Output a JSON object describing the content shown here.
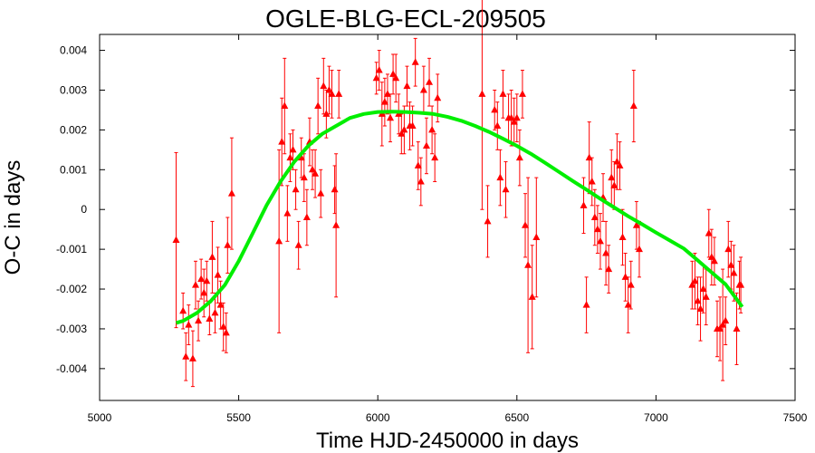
{
  "chart_data": {
    "type": "scatter",
    "title": "OGLE-BLG-ECL-209505",
    "xlabel": "Time HJD-2450000 in days",
    "ylabel": "O-C in days",
    "xlim": [
      5000,
      7500
    ],
    "ylim": [
      -0.0048,
      0.0044
    ],
    "x_ticks": [
      5000,
      5500,
      6000,
      6500,
      7000,
      7500
    ],
    "y_ticks": [
      0.004,
      0.003,
      0.002,
      0.001,
      0,
      -0.001,
      -0.002,
      -0.003,
      -0.004
    ],
    "x_tick_labels": [
      "5000",
      "5500",
      "6000",
      "6500",
      "7000",
      "7500"
    ],
    "y_tick_labels": [
      "0.004",
      "0.003",
      "0.002",
      "0.001",
      "0",
      "-0.001",
      "-0.002",
      "-0.003",
      "-0.004"
    ],
    "grid": false,
    "series": [
      {
        "kind": "points-with-errorbars",
        "color": "#ff0000",
        "marker": "triangle",
        "points": [
          {
            "x": 5275,
            "y": -0.00077,
            "err": 0.0022
          },
          {
            "x": 5300,
            "y": -0.00255,
            "err": 0.00045
          },
          {
            "x": 5310,
            "y": -0.0037,
            "err": 0.0006
          },
          {
            "x": 5320,
            "y": -0.0029,
            "err": 0.0005
          },
          {
            "x": 5335,
            "y": -0.00375,
            "err": 0.0007
          },
          {
            "x": 5345,
            "y": -0.0019,
            "err": 0.0006
          },
          {
            "x": 5355,
            "y": -0.0028,
            "err": 0.0005
          },
          {
            "x": 5365,
            "y": -0.00175,
            "err": 0.0005
          },
          {
            "x": 5375,
            "y": -0.0021,
            "err": 0.0006
          },
          {
            "x": 5385,
            "y": -0.0018,
            "err": 0.0005
          },
          {
            "x": 5395,
            "y": -0.00275,
            "err": 0.0004
          },
          {
            "x": 5405,
            "y": -0.0012,
            "err": 0.0009
          },
          {
            "x": 5415,
            "y": -0.0026,
            "err": 0.0005
          },
          {
            "x": 5425,
            "y": -0.00165,
            "err": 0.0007
          },
          {
            "x": 5435,
            "y": -0.0024,
            "err": 0.0006
          },
          {
            "x": 5445,
            "y": -0.00295,
            "err": 0.0006
          },
          {
            "x": 5455,
            "y": -0.0031,
            "err": 0.0005
          },
          {
            "x": 5460,
            "y": -0.0009,
            "err": 0.0007
          },
          {
            "x": 5475,
            "y": 0.0004,
            "err": 0.0014
          },
          {
            "x": 5645,
            "y": -0.0008,
            "err": 0.0023
          },
          {
            "x": 5655,
            "y": 0.0017,
            "err": 0.0011
          },
          {
            "x": 5665,
            "y": 0.0026,
            "err": 0.0012
          },
          {
            "x": 5675,
            "y": -0.0001,
            "err": 0.0007
          },
          {
            "x": 5685,
            "y": 0.0013,
            "err": 0.0006
          },
          {
            "x": 5695,
            "y": 0.0015,
            "err": 0.0005
          },
          {
            "x": 5705,
            "y": 0.0005,
            "err": 0.0005
          },
          {
            "x": 5715,
            "y": -0.0009,
            "err": 0.0006
          },
          {
            "x": 5725,
            "y": 0.0013,
            "err": 0.0005
          },
          {
            "x": 5735,
            "y": 0.0008,
            "err": 0.0006
          },
          {
            "x": 5745,
            "y": -0.0002,
            "err": 0.0007
          },
          {
            "x": 5755,
            "y": 0.0017,
            "err": 0.0006
          },
          {
            "x": 5765,
            "y": 0.001,
            "err": 0.0005
          },
          {
            "x": 5775,
            "y": 0.0009,
            "err": 0.0006
          },
          {
            "x": 5785,
            "y": 0.0026,
            "err": 0.0007
          },
          {
            "x": 5795,
            "y": 0.0004,
            "err": 0.0006
          },
          {
            "x": 5805,
            "y": 0.0031,
            "err": 0.0007
          },
          {
            "x": 5815,
            "y": 0.0024,
            "err": 0.0006
          },
          {
            "x": 5825,
            "y": 0.003,
            "err": 0.0006
          },
          {
            "x": 5835,
            "y": 0.0029,
            "err": 0.0006
          },
          {
            "x": 5845,
            "y": 0.0005,
            "err": 0.0006
          },
          {
            "x": 5850,
            "y": -0.0004,
            "err": 0.0018
          },
          {
            "x": 5860,
            "y": 0.0029,
            "err": 0.0006
          },
          {
            "x": 5995,
            "y": 0.0033,
            "err": 0.0004
          },
          {
            "x": 6005,
            "y": 0.0035,
            "err": 0.0005
          },
          {
            "x": 6015,
            "y": 0.0024,
            "err": 0.0008
          },
          {
            "x": 6025,
            "y": 0.0027,
            "err": 0.0006
          },
          {
            "x": 6035,
            "y": 0.0029,
            "err": 0.0005
          },
          {
            "x": 6045,
            "y": 0.0023,
            "err": 0.0006
          },
          {
            "x": 6055,
            "y": 0.0034,
            "err": 0.0005
          },
          {
            "x": 6065,
            "y": 0.0033,
            "err": 0.0006
          },
          {
            "x": 6075,
            "y": 0.0024,
            "err": 0.0005
          },
          {
            "x": 6085,
            "y": 0.0019,
            "err": 0.0005
          },
          {
            "x": 6095,
            "y": 0.002,
            "err": 0.0006
          },
          {
            "x": 6105,
            "y": 0.0031,
            "err": 0.0005
          },
          {
            "x": 6115,
            "y": 0.0021,
            "err": 0.0006
          },
          {
            "x": 6125,
            "y": 0.0021,
            "err": 0.0005
          },
          {
            "x": 6135,
            "y": 0.0037,
            "err": 0.0006
          },
          {
            "x": 6145,
            "y": 0.0011,
            "err": 0.0006
          },
          {
            "x": 6155,
            "y": 0.0007,
            "err": 0.0006
          },
          {
            "x": 6165,
            "y": 0.003,
            "err": 0.0006
          },
          {
            "x": 6175,
            "y": 0.0016,
            "err": 0.0007
          },
          {
            "x": 6185,
            "y": 0.0032,
            "err": 0.0006
          },
          {
            "x": 6195,
            "y": 0.002,
            "err": 0.0006
          },
          {
            "x": 6205,
            "y": 0.0013,
            "err": 0.0006
          },
          {
            "x": 6215,
            "y": 0.0028,
            "err": 0.0006
          },
          {
            "x": 6375,
            "y": 0.0029,
            "err": 0.0029
          },
          {
            "x": 6395,
            "y": -0.0003,
            "err": 0.0009
          },
          {
            "x": 6420,
            "y": 0.0025,
            "err": 0.0005
          },
          {
            "x": 6430,
            "y": 0.0021,
            "err": 0.0006
          },
          {
            "x": 6440,
            "y": 0.0008,
            "err": 0.0007
          },
          {
            "x": 6450,
            "y": 0.0029,
            "err": 0.0006
          },
          {
            "x": 6460,
            "y": 0.0005,
            "err": 0.0007
          },
          {
            "x": 6470,
            "y": 0.0023,
            "err": 0.0006
          },
          {
            "x": 6480,
            "y": 0.0023,
            "err": 0.0007
          },
          {
            "x": 6490,
            "y": 0.0022,
            "err": 0.0006
          },
          {
            "x": 6500,
            "y": 0.0023,
            "err": 0.0006
          },
          {
            "x": 6510,
            "y": 0.0013,
            "err": 0.0007
          },
          {
            "x": 6520,
            "y": 0.0029,
            "err": 0.0006
          },
          {
            "x": 6530,
            "y": -0.0004,
            "err": 0.0008
          },
          {
            "x": 6540,
            "y": -0.0014,
            "err": 0.0022
          },
          {
            "x": 6555,
            "y": -0.0022,
            "err": 0.0013
          },
          {
            "x": 6570,
            "y": -0.0007,
            "err": 0.0015
          },
          {
            "x": 6740,
            "y": 0.0001,
            "err": 0.0007
          },
          {
            "x": 6750,
            "y": -0.0024,
            "err": 0.0007
          },
          {
            "x": 6760,
            "y": 0.0013,
            "err": 0.0009
          },
          {
            "x": 6770,
            "y": 0.0007,
            "err": 0.0006
          },
          {
            "x": 6780,
            "y": -0.0002,
            "err": 0.0007
          },
          {
            "x": 6790,
            "y": -0.0005,
            "err": 0.0006
          },
          {
            "x": 6800,
            "y": -0.0008,
            "err": 0.0007
          },
          {
            "x": 6810,
            "y": 0.0003,
            "err": 0.0006
          },
          {
            "x": 6820,
            "y": -0.0011,
            "err": 0.0008
          },
          {
            "x": 6830,
            "y": -0.0015,
            "err": 0.0006
          },
          {
            "x": 6840,
            "y": 0.0008,
            "err": 0.0007
          },
          {
            "x": 6850,
            "y": 0.0006,
            "err": 0.0006
          },
          {
            "x": 6860,
            "y": 0.0012,
            "err": 0.0007
          },
          {
            "x": 6870,
            "y": 0.0011,
            "err": 0.0006
          },
          {
            "x": 6880,
            "y": -0.0007,
            "err": 0.0007
          },
          {
            "x": 6890,
            "y": -0.0017,
            "err": 0.0006
          },
          {
            "x": 6900,
            "y": -0.0024,
            "err": 0.0007
          },
          {
            "x": 6910,
            "y": -0.0019,
            "err": 0.0006
          },
          {
            "x": 6920,
            "y": 0.0026,
            "err": 0.0009
          },
          {
            "x": 6930,
            "y": -0.0004,
            "err": 0.0006
          },
          {
            "x": 6940,
            "y": -0.001,
            "err": 0.0007
          },
          {
            "x": 7130,
            "y": -0.0019,
            "err": 0.0006
          },
          {
            "x": 7140,
            "y": -0.0018,
            "err": 0.0007
          },
          {
            "x": 7150,
            "y": -0.0023,
            "err": 0.0006
          },
          {
            "x": 7160,
            "y": -0.0025,
            "err": 0.0008
          },
          {
            "x": 7170,
            "y": -0.002,
            "err": 0.0006
          },
          {
            "x": 7180,
            "y": -0.0022,
            "err": 0.0007
          },
          {
            "x": 7190,
            "y": -0.0006,
            "err": 0.0006
          },
          {
            "x": 7200,
            "y": -0.0012,
            "err": 0.0007
          },
          {
            "x": 7210,
            "y": -0.0013,
            "err": 0.0006
          },
          {
            "x": 7220,
            "y": -0.003,
            "err": 0.0007
          },
          {
            "x": 7230,
            "y": -0.003,
            "err": 0.0008
          },
          {
            "x": 7240,
            "y": -0.0029,
            "err": 0.0014
          },
          {
            "x": 7250,
            "y": -0.0028,
            "err": 0.0006
          },
          {
            "x": 7260,
            "y": -0.001,
            "err": 0.0007
          },
          {
            "x": 7270,
            "y": -0.0014,
            "err": 0.0006
          },
          {
            "x": 7280,
            "y": -0.0016,
            "err": 0.0007
          },
          {
            "x": 7290,
            "y": -0.003,
            "err": 0.0009
          },
          {
            "x": 7300,
            "y": -0.0019,
            "err": 0.0006
          },
          {
            "x": 7305,
            "y": -0.0019,
            "err": 0.0007
          }
        ]
      },
      {
        "kind": "line",
        "color": "#00ee00",
        "x": [
          5275,
          5300,
          5350,
          5400,
          5450,
          5500,
          5550,
          5600,
          5650,
          5700,
          5750,
          5800,
          5850,
          5900,
          5950,
          6000,
          6050,
          6100,
          6150,
          6200,
          6250,
          6300,
          6350,
          6400,
          6450,
          6500,
          6550,
          6600,
          6650,
          6700,
          6750,
          6800,
          6850,
          6900,
          6950,
          7000,
          7050,
          7100,
          7150,
          7200,
          7250,
          7300,
          7310
        ],
        "y": [
          -0.00285,
          -0.0028,
          -0.0026,
          -0.0023,
          -0.0019,
          -0.0013,
          -0.0006,
          0.0001,
          0.0007,
          0.0012,
          0.0016,
          0.0019,
          0.0021,
          0.0023,
          0.0024,
          0.00245,
          0.00246,
          0.00245,
          0.00243,
          0.0024,
          0.00233,
          0.00223,
          0.0021,
          0.00195,
          0.00178,
          0.0016,
          0.0014,
          0.00118,
          0.00095,
          0.00072,
          0.0005,
          0.00027,
          5e-05,
          -0.00017,
          -0.00037,
          -0.00058,
          -0.00078,
          -0.00098,
          -0.00128,
          -0.00158,
          -0.00188,
          -0.00235,
          -0.00245
        ]
      }
    ]
  }
}
